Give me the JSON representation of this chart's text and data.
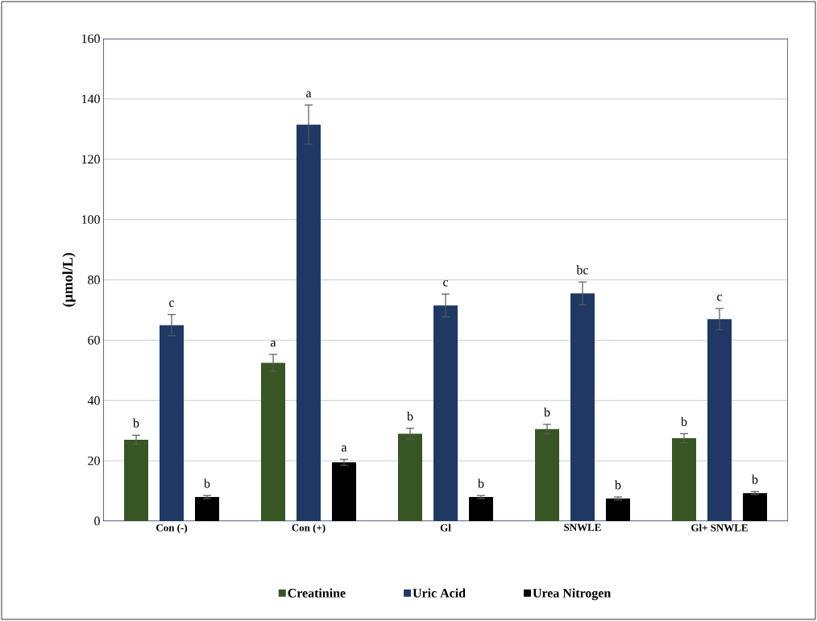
{
  "chart_data": {
    "type": "bar",
    "ylabel": "(µmol/L)",
    "categories": [
      "Con (-)",
      "Con (+)",
      "Gl",
      "SNWLE",
      "Gl+ SNWLE"
    ],
    "series": [
      {
        "name": "Creatinine",
        "color": "#375623",
        "values": [
          27,
          52.5,
          29,
          30.5,
          27.5
        ],
        "errors": [
          1.5,
          2.8,
          1.8,
          1.6,
          1.5
        ]
      },
      {
        "name": "Uric Acid",
        "color": "#1f3864",
        "values": [
          65,
          131.5,
          71.5,
          75.5,
          67
        ],
        "errors": [
          3.5,
          6.5,
          3.8,
          3.8,
          3.5
        ]
      },
      {
        "name": "Urea Nitrogen",
        "color": "#000000",
        "values": [
          8,
          19.5,
          8,
          7.5,
          9.3
        ],
        "errors": [
          0.5,
          1,
          0.5,
          0.5,
          0.5
        ]
      }
    ],
    "ylim": [
      0,
      160
    ],
    "yticks": [
      0,
      20,
      40,
      60,
      80,
      100,
      120,
      140,
      160
    ],
    "grid": "y",
    "legend": "bottom",
    "annotations": [
      "b",
      "c",
      "b",
      "a",
      "a",
      "a",
      "b",
      "c",
      "b",
      "b",
      "bc",
      "b",
      "b",
      "c",
      "b"
    ]
  }
}
